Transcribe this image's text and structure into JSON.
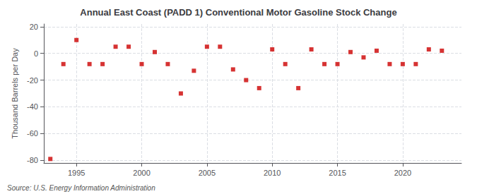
{
  "chart_data": {
    "type": "scatter",
    "title": "Annual East Coast (PADD 1) Conventional Motor Gasoline Stock Change",
    "ylabel": "Thousand Barrels per Day",
    "annotations": [
      "Source: U.S. Energy Information Administration"
    ],
    "x": [
      1993,
      1994,
      1995,
      1996,
      1997,
      1998,
      1999,
      2000,
      2001,
      2002,
      2003,
      2004,
      2005,
      2006,
      2007,
      2008,
      2009,
      2010,
      2011,
      2012,
      2013,
      2014,
      2015,
      2016,
      2017,
      2018,
      2019,
      2020,
      2021,
      2022,
      2023
    ],
    "values": [
      -79,
      -8,
      10,
      -8,
      -8,
      5,
      5,
      -8,
      1,
      -8,
      -30,
      -13,
      5,
      5,
      -12,
      -20,
      -26,
      3,
      -8,
      -26,
      3,
      -8,
      -8,
      1,
      -3,
      2,
      -8,
      -8,
      -8,
      3,
      2
    ],
    "color": "#cc0000",
    "marker": "square",
    "xlim": [
      1992.5,
      2024.5
    ],
    "xticks": [
      1995,
      2000,
      2005,
      2010,
      2015,
      2020
    ],
    "ylim": [
      -82,
      22
    ],
    "yticks": [
      -80,
      -60,
      -40,
      -20,
      0,
      20
    ],
    "grid": true
  }
}
